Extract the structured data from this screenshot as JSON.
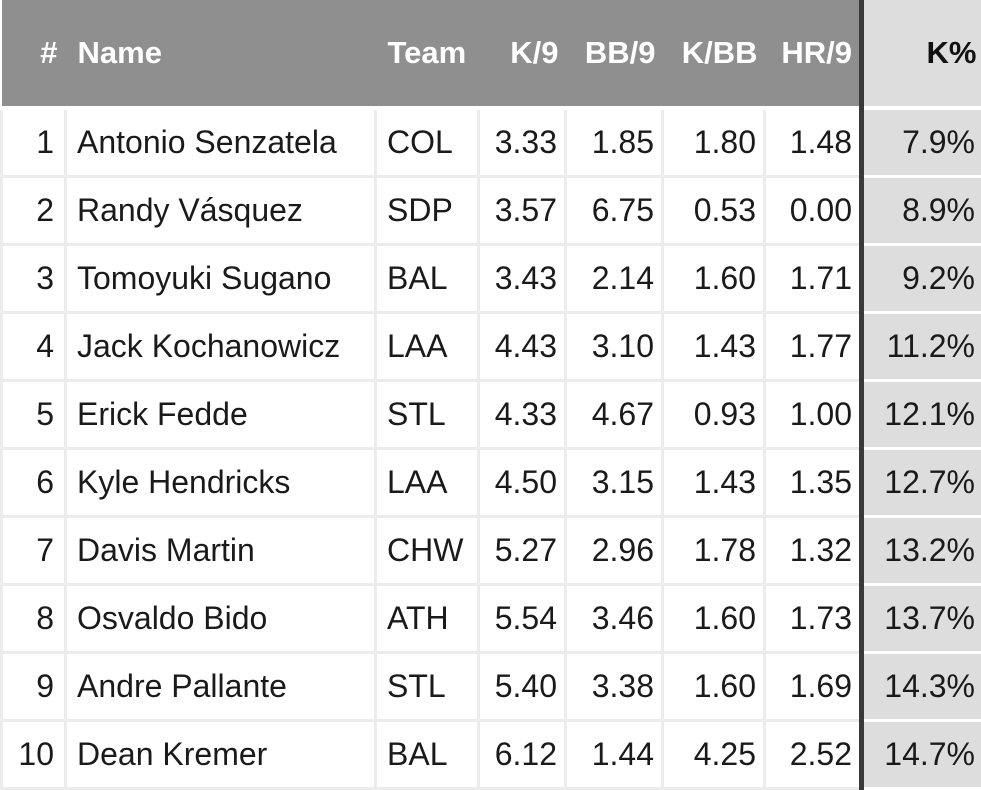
{
  "chart_data": {
    "type": "table",
    "columns": [
      "#",
      "Name",
      "Team",
      "K/9",
      "BB/9",
      "K/BB",
      "HR/9",
      "K%"
    ],
    "rows": [
      [
        "1",
        "Antonio Senzatela",
        "COL",
        "3.33",
        "1.85",
        "1.80",
        "1.48",
        "7.9%"
      ],
      [
        "2",
        "Randy Vásquez",
        "SDP",
        "3.57",
        "6.75",
        "0.53",
        "0.00",
        "8.9%"
      ],
      [
        "3",
        "Tomoyuki Sugano",
        "BAL",
        "3.43",
        "2.14",
        "1.60",
        "1.71",
        "9.2%"
      ],
      [
        "4",
        "Jack Kochanowicz",
        "LAA",
        "4.43",
        "3.10",
        "1.43",
        "1.77",
        "11.2%"
      ],
      [
        "5",
        "Erick Fedde",
        "STL",
        "4.33",
        "4.67",
        "0.93",
        "1.00",
        "12.1%"
      ],
      [
        "6",
        "Kyle Hendricks",
        "LAA",
        "4.50",
        "3.15",
        "1.43",
        "1.35",
        "12.7%"
      ],
      [
        "7",
        "Davis Martin",
        "CHW",
        "5.27",
        "2.96",
        "1.78",
        "1.32",
        "13.2%"
      ],
      [
        "8",
        "Osvaldo Bido",
        "ATH",
        "5.54",
        "3.46",
        "1.60",
        "1.73",
        "13.7%"
      ],
      [
        "9",
        "Andre Pallante",
        "STL",
        "5.40",
        "3.38",
        "1.60",
        "1.69",
        "14.3%"
      ],
      [
        "10",
        "Dean Kremer",
        "BAL",
        "6.12",
        "1.44",
        "4.25",
        "2.52",
        "14.7%"
      ]
    ],
    "highlighted_column": "K%",
    "sort": "ascending by K%"
  },
  "colors": {
    "header_bg": "#8f8f8f",
    "header_text": "#ffffff",
    "highlight_bg": "#dddddd",
    "divider": "#3a3a3a",
    "cell_border": "#ececec"
  }
}
